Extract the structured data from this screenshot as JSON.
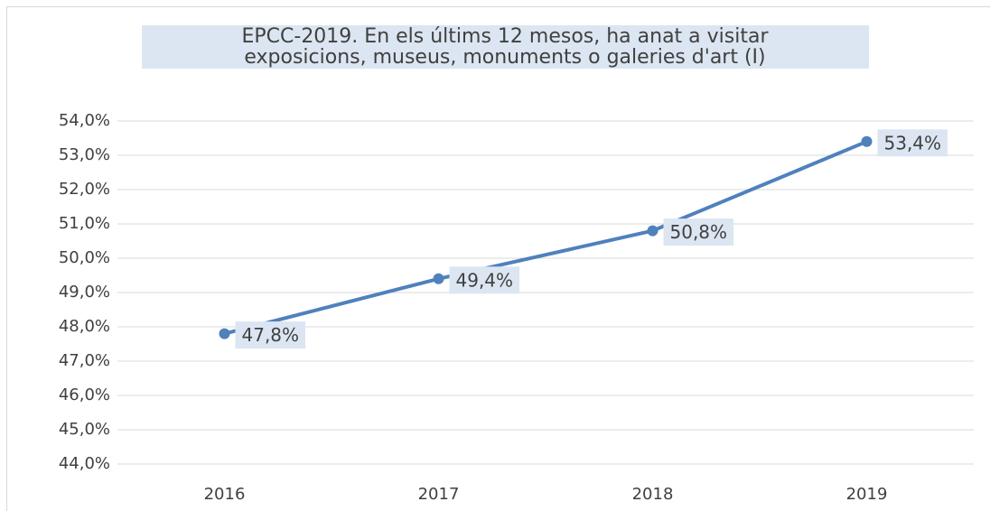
{
  "chart_data": {
    "type": "line",
    "title": [
      "EPCC-2019. En els últims 12 mesos, ha anat a visitar",
      "exposicions, museus, monuments o galeries d'art (I)"
    ],
    "categories": [
      "2016",
      "2017",
      "2018",
      "2019"
    ],
    "series": [
      {
        "name": null,
        "color": "#4f81bd",
        "values": [
          47.8,
          49.4,
          50.8,
          53.4
        ],
        "value_labels": [
          "47,8%",
          "49,4%",
          "50,8%",
          "53,4%"
        ]
      }
    ],
    "ylim": [
      44,
      54
    ],
    "yticks": [
      {
        "value": 44,
        "label": "44,0%"
      },
      {
        "value": 45,
        "label": "45,0%"
      },
      {
        "value": 46,
        "label": "46,0%"
      },
      {
        "value": 47,
        "label": "47,0%"
      },
      {
        "value": 48,
        "label": "48,0%"
      },
      {
        "value": 49,
        "label": "49,0%"
      },
      {
        "value": 50,
        "label": "50,0%"
      },
      {
        "value": 51,
        "label": "51,0%"
      },
      {
        "value": 52,
        "label": "52,0%"
      },
      {
        "value": 53,
        "label": "53,0%"
      },
      {
        "value": 54,
        "label": "54,0%"
      }
    ],
    "grid": true
  }
}
